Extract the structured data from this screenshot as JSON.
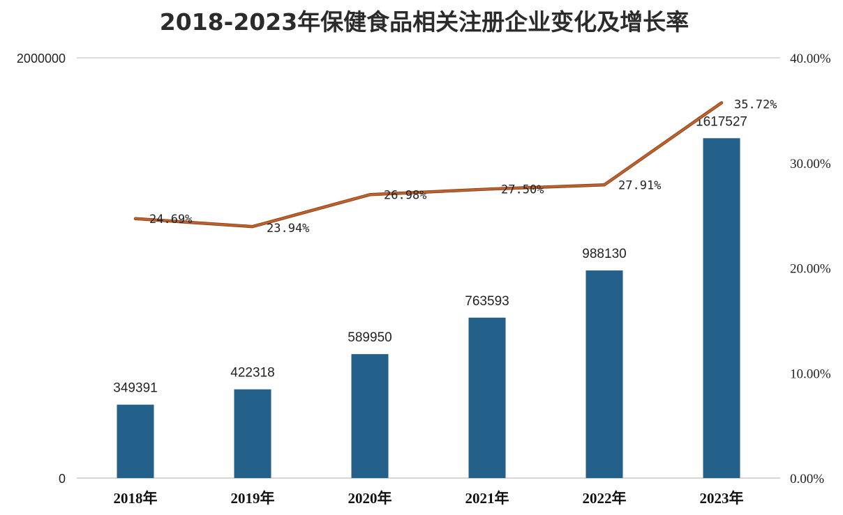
{
  "chart_data": {
    "type": "bar",
    "title": "2018-2023年保健食品相关注册企业变化及增长率",
    "categories": [
      "2018年",
      "2019年",
      "2020年",
      "2021年",
      "2022年",
      "2023年"
    ],
    "series": [
      {
        "kind": "bar",
        "axis": "left",
        "values": [
          349391,
          422318,
          589950,
          763593,
          988130,
          1617527
        ],
        "labels": [
          "349391",
          "422318",
          "589950",
          "763593",
          "988130",
          "1617527"
        ],
        "color": "#24618a"
      },
      {
        "kind": "line",
        "axis": "right",
        "values": [
          24.69,
          23.94,
          26.98,
          27.5,
          27.91,
          35.72
        ],
        "labels": [
          "24.69%",
          "23.94%",
          "26.98%",
          "27.50%",
          "27.91%",
          "35.72%"
        ],
        "color": "#c0622b"
      }
    ],
    "y_left": {
      "min": 0,
      "max": 2000000,
      "ticks": [
        "0",
        "2000000"
      ]
    },
    "y_right": {
      "min": 0,
      "max": 40,
      "ticks": [
        "0.00%",
        "10.00%",
        "20.00%",
        "30.00%",
        "40.00%"
      ]
    },
    "grid": true,
    "legend": "none"
  }
}
